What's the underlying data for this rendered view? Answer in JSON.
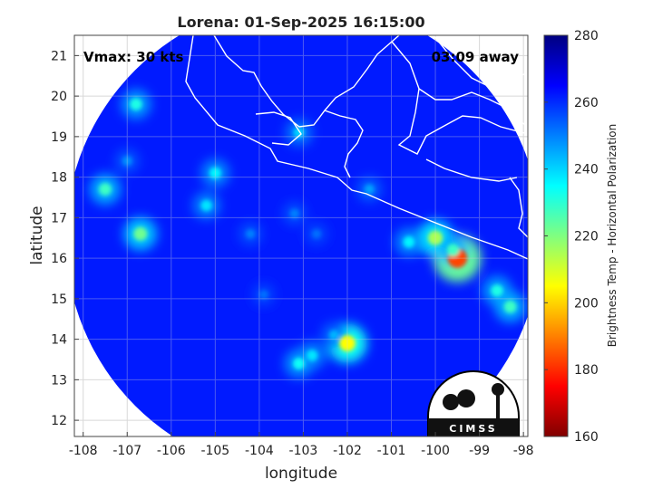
{
  "chart_data": {
    "type": "heatmap",
    "title": "Lorena: 01-Sep-2025 16:15:00",
    "xlabel": "longitude",
    "ylabel": "latitude",
    "xlim": [
      -108.2,
      -97.9
    ],
    "ylim": [
      11.6,
      21.5
    ],
    "xticks": [
      -108,
      -107,
      -106,
      -105,
      -104,
      -103,
      -102,
      -101,
      -100,
      -99,
      -98
    ],
    "yticks": [
      12,
      13,
      14,
      15,
      16,
      17,
      18,
      19,
      20,
      21
    ],
    "grid": true,
    "annotations": {
      "vmax": "Vmax: 30 kts",
      "time_away": "03:09 away"
    },
    "colorbar": {
      "label": "Brightness Temp - Horizontal Polarization",
      "min": 160,
      "max": 280,
      "ticks": [
        160,
        180,
        200,
        220,
        240,
        260,
        280
      ],
      "colormap": [
        "#800000",
        "#ff0000",
        "#ff8000",
        "#ffff00",
        "#80ff80",
        "#00ffff",
        "#0080ff",
        "#0000ff",
        "#000080"
      ]
    },
    "swath": {
      "center_lon": -103.0,
      "center_lat": 16.5,
      "radius_deg": 5.4
    },
    "background_value": 262,
    "features": [
      {
        "lon": -99.5,
        "lat": 16.0,
        "value": 183
      },
      {
        "lon": -100.0,
        "lat": 16.5,
        "value": 215
      },
      {
        "lon": -99.6,
        "lat": 16.2,
        "value": 228
      },
      {
        "lon": -100.6,
        "lat": 16.4,
        "value": 236
      },
      {
        "lon": -98.6,
        "lat": 15.2,
        "value": 232
      },
      {
        "lon": -98.3,
        "lat": 14.8,
        "value": 228
      },
      {
        "lon": -102.0,
        "lat": 13.9,
        "value": 205
      },
      {
        "lon": -102.8,
        "lat": 13.6,
        "value": 238
      },
      {
        "lon": -103.1,
        "lat": 13.4,
        "value": 234
      },
      {
        "lon": -102.3,
        "lat": 14.1,
        "value": 244
      },
      {
        "lon": -103.2,
        "lat": 17.1,
        "value": 250
      },
      {
        "lon": -102.7,
        "lat": 16.6,
        "value": 252
      },
      {
        "lon": -104.2,
        "lat": 16.6,
        "value": 250
      },
      {
        "lon": -105.0,
        "lat": 18.1,
        "value": 236
      },
      {
        "lon": -105.2,
        "lat": 17.3,
        "value": 238
      },
      {
        "lon": -106.7,
        "lat": 16.6,
        "value": 222
      },
      {
        "lon": -107.5,
        "lat": 17.7,
        "value": 228
      },
      {
        "lon": -106.8,
        "lat": 19.8,
        "value": 232
      },
      {
        "lon": -103.1,
        "lat": 19.1,
        "value": 240
      },
      {
        "lon": -101.5,
        "lat": 17.7,
        "value": 246
      },
      {
        "lon": -107.0,
        "lat": 18.4,
        "value": 248
      },
      {
        "lon": -103.9,
        "lat": 15.1,
        "value": 252
      }
    ],
    "logo": "CIMSS"
  }
}
